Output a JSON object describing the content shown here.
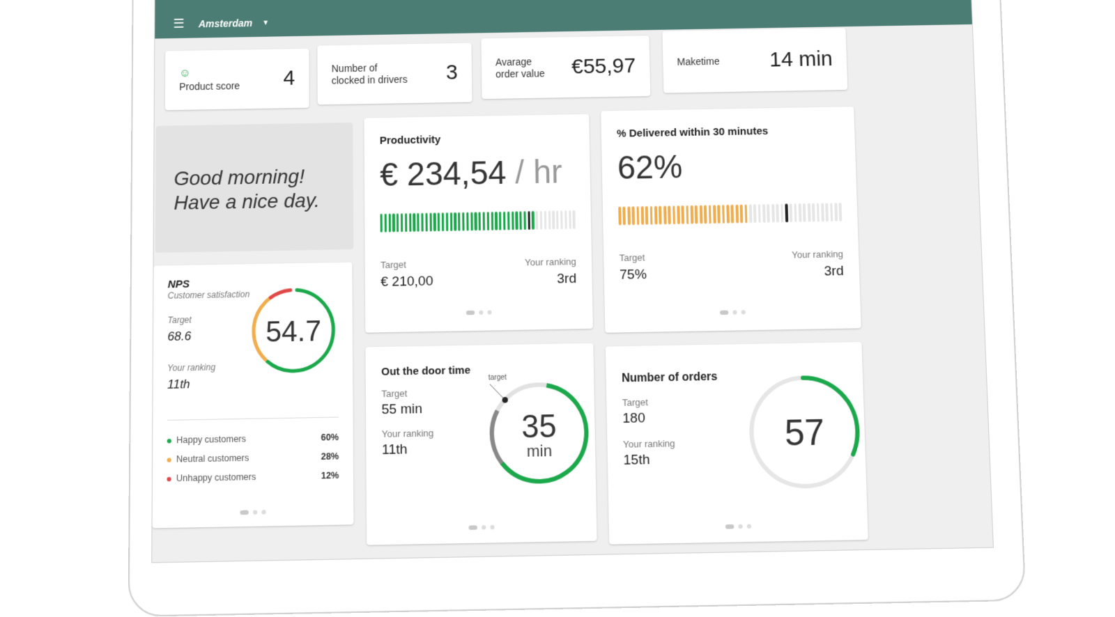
{
  "header": {
    "menu_icon": "hamburger-menu-icon",
    "city": "Amsterdam",
    "caret_icon": "dropdown-caret-icon"
  },
  "stats": [
    {
      "label_line1": "",
      "label_line2": "Product score",
      "value": "4",
      "icon": "smiley-icon"
    },
    {
      "label_line1": "Number of",
      "label_line2": "clocked in drivers",
      "value": "3"
    },
    {
      "label_line1": "Avarage",
      "label_line2": "order value",
      "value": "€55,97"
    },
    {
      "label_line1": "",
      "label_line2": "Maketime",
      "value": "14 min"
    }
  ],
  "greeting": {
    "line1": "Good morning!",
    "line2": "Have a nice day."
  },
  "productivity": {
    "title": "Productivity",
    "value": "€ 234,54",
    "unit": "/ hr",
    "target_label": "Target",
    "target_value": "€ 210,00",
    "ranking_label": "Your ranking",
    "ranking_value": "3rd",
    "fill_fraction": 0.79,
    "target_fraction": 0.74,
    "fill_color": "#1aa84a"
  },
  "delivered": {
    "title": "% Delivered within 30 minutes",
    "value": "62%",
    "target_label": "Target",
    "target_value": "75%",
    "ranking_label": "Your ranking",
    "ranking_value": "3rd",
    "fill_fraction": 0.58,
    "target_fraction": 0.73,
    "fill_color": "#f0ad4e"
  },
  "nps": {
    "title": "NPS",
    "subtitle": "Customer satisfaction",
    "value": "54.7",
    "target_label": "Target",
    "target_value": "68.6",
    "ranking_label": "Your ranking",
    "ranking_value": "11th",
    "legend": [
      {
        "label": "Happy customers",
        "pct": "60%",
        "color": "#1aa84a",
        "fraction": 0.6
      },
      {
        "label": "Neutral customers",
        "pct": "28%",
        "color": "#f0ad4e",
        "fraction": 0.28
      },
      {
        "label": "Unhappy customers",
        "pct": "12%",
        "color": "#e04848",
        "fraction": 0.12
      }
    ]
  },
  "door": {
    "title": "Out the door time",
    "value": "35",
    "unit": "min",
    "target_tag": "target",
    "target_label": "Target",
    "target_value": "55 min",
    "ranking_label": "Your ranking",
    "ranking_value": "11th"
  },
  "orders": {
    "title": "Number of orders",
    "value": "57",
    "target_label": "Target",
    "target_value": "180",
    "ranking_label": "Your ranking",
    "ranking_value": "15th",
    "fraction": 0.32
  },
  "colors": {
    "green": "#1aa84a",
    "orange": "#f0ad4e",
    "red": "#e04848",
    "header": "#4b7d74"
  }
}
